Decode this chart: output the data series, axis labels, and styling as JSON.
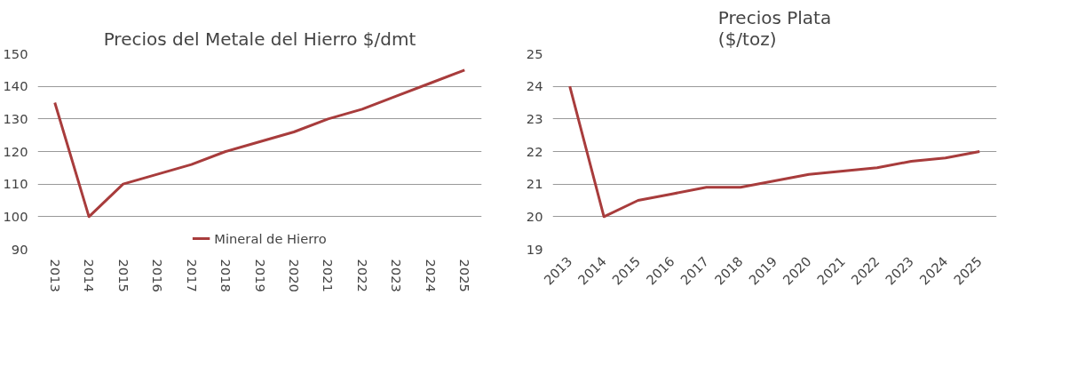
{
  "chart_data": [
    {
      "type": "line",
      "title": "Precios del Metale del Hierro $/dmt",
      "categories": [
        "2013",
        "2014",
        "2015",
        "2016",
        "2017",
        "2018",
        "2019",
        "2020",
        "2021",
        "2022",
        "2023",
        "2024",
        "2025"
      ],
      "series": [
        {
          "name": "Mineral de Hierro",
          "color": "#a83c3c",
          "values": [
            135,
            100,
            110,
            113,
            116,
            120,
            123,
            126,
            130,
            133,
            137,
            141,
            145
          ]
        }
      ],
      "ylim": [
        90,
        150
      ],
      "yticks": [
        90,
        100,
        110,
        120,
        130,
        140,
        150
      ],
      "grid": "y",
      "legend": "bottom"
    },
    {
      "type": "line",
      "title": "Precios Plata\n($/toz)",
      "categories": [
        "2013",
        "2014",
        "2015",
        "2016",
        "2017",
        "2018",
        "2019",
        "2020",
        "2021",
        "2022",
        "2023",
        "2024",
        "2025"
      ],
      "series": [
        {
          "color": "#a83c3c",
          "values": [
            24,
            20,
            20.5,
            20.7,
            20.9,
            20.9,
            21.1,
            21.3,
            21.4,
            21.5,
            21.7,
            21.8,
            22.0
          ]
        }
      ],
      "ylim": [
        19,
        25
      ],
      "yticks": [
        19,
        20,
        21,
        22,
        23,
        24,
        25
      ],
      "grid": "y"
    }
  ]
}
